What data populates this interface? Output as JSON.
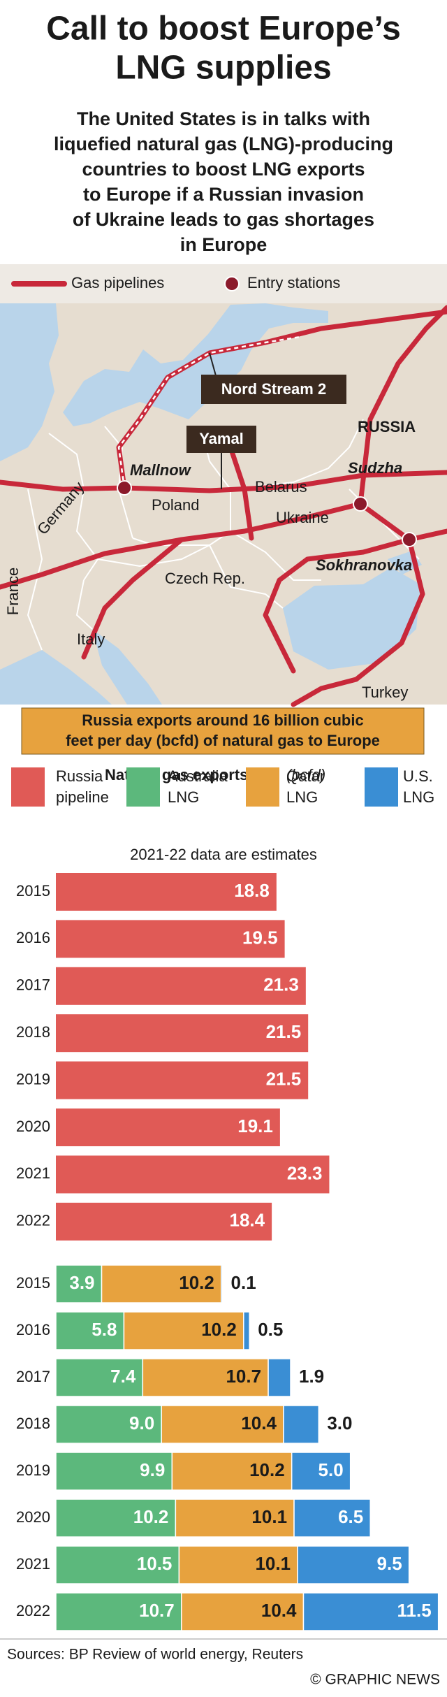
{
  "header": {
    "title": [
      "Call to boost Europe’s",
      "LNG supplies"
    ],
    "subtitle": [
      "The United States is in talks with",
      "liquefied natural gas (LNG)-producing",
      "countries to boost LNG exports",
      "to Europe if a Russian invasion",
      "of Ukraine leads to gas shortages",
      "in Europe"
    ]
  },
  "map": {
    "legend": [
      "Gas pipelines",
      "Entry stations"
    ],
    "pipelines": [
      "Nord Stream 2",
      "Yamal"
    ],
    "entry_stations": [
      "Mallnow",
      "Sudzha",
      "Sokhranovka"
    ],
    "countries": [
      "RUSSIA",
      "Belarus",
      "Poland",
      "Germany",
      "Ukraine",
      "Czech Rep.",
      "France",
      "Italy",
      "Turkey"
    ],
    "callout": [
      "Russia exports around 16 billion cubic",
      "feet per day (bcfd) of natural gas to Europe"
    ]
  },
  "chart_data": [
    {
      "type": "bar",
      "orientation": "horizontal",
      "title": "Natural gas exports",
      "unit": "(bcfd)",
      "note": "2021-22 data are estimates",
      "categories": [
        "2015",
        "2016",
        "2017",
        "2018",
        "2019",
        "2020",
        "2021",
        "2022"
      ],
      "series": [
        {
          "name": "Russia pipeline",
          "color": "#e05a56",
          "values": [
            18.8,
            19.5,
            21.3,
            21.5,
            21.5,
            19.1,
            23.3,
            18.4
          ]
        }
      ]
    },
    {
      "type": "stacked_bar",
      "orientation": "horizontal",
      "categories": [
        "2015",
        "2016",
        "2017",
        "2018",
        "2019",
        "2020",
        "2021",
        "2022"
      ],
      "series": [
        {
          "name": "Australia LNG",
          "color": "#5cb87c",
          "values": [
            3.9,
            5.8,
            7.4,
            9.0,
            9.9,
            10.2,
            10.5,
            10.7
          ],
          "value_labels": [
            "3.9",
            "5.8",
            "7.4",
            "9.0",
            "9.9",
            "10.2",
            "10.5",
            "10.7"
          ]
        },
        {
          "name": "Qatar LNG",
          "color": "#e7a23e",
          "values": [
            10.2,
            10.2,
            10.7,
            10.4,
            10.2,
            10.1,
            10.1,
            10.4
          ]
        },
        {
          "name": "U.S. LNG",
          "color": "#3a8ed4",
          "values": [
            0.1,
            0.5,
            1.9,
            3.0,
            5.0,
            6.5,
            9.5,
            11.5
          ],
          "value_labels": [
            "0.1",
            "0.5",
            "1.9",
            "3.0",
            "5.0",
            "6.5",
            "9.5",
            "11.5"
          ]
        }
      ]
    }
  ],
  "footer": {
    "sources": "Sources: BP Review of world energy, Reuters",
    "credit": "© GRAPHIC NEWS"
  }
}
